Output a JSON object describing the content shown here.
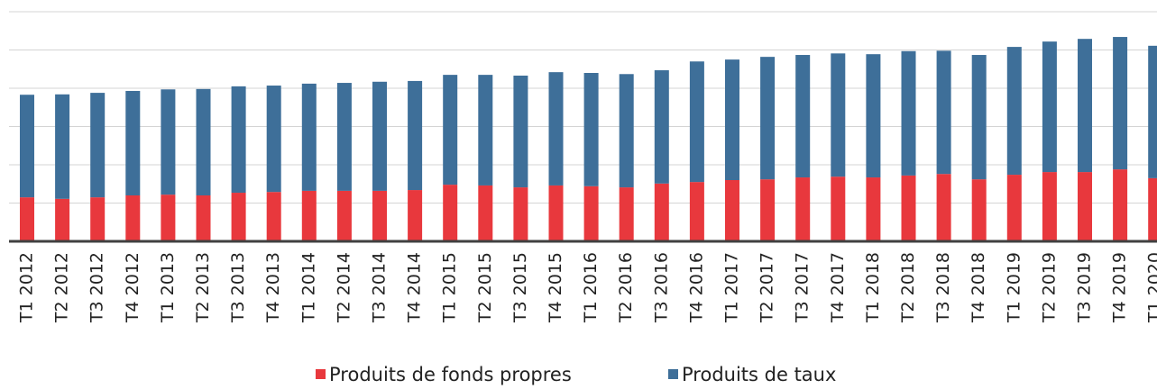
{
  "chart_data": {
    "type": "stacked_bar",
    "categories": [
      "T1 2012",
      "T2 2012",
      "T3 2012",
      "T4 2012",
      "T1 2013",
      "T2 2013",
      "T3 2013",
      "T4 2013",
      "T1 2014",
      "T2 2014",
      "T3 2014",
      "T4 2014",
      "T1 2015",
      "T2 2015",
      "T3 2015",
      "T4 2015",
      "T1 2016",
      "T2 2016",
      "T3 2016",
      "T4 2016",
      "T1 2017",
      "T2 2017",
      "T3 2017",
      "T4 2017",
      "T1 2018",
      "T2 2018",
      "T3 2018",
      "T4 2018",
      "T1 2019",
      "T2 2019",
      "T3 2019",
      "T4 2019",
      "T1 2020"
    ],
    "series": [
      {
        "name": "Produits de fonds propres",
        "color": "#e8383d",
        "values": [
          1.15,
          1.11,
          1.15,
          1.2,
          1.22,
          1.2,
          1.27,
          1.29,
          1.32,
          1.32,
          1.32,
          1.34,
          1.48,
          1.46,
          1.41,
          1.46,
          1.44,
          1.41,
          1.51,
          1.55,
          1.6,
          1.62,
          1.67,
          1.69,
          1.67,
          1.72,
          1.76,
          1.62,
          1.74,
          1.81,
          1.81,
          1.88,
          1.65
        ]
      },
      {
        "name": "Produits de taux",
        "color": "#3e6f99",
        "values": [
          2.68,
          2.73,
          2.73,
          2.73,
          2.75,
          2.78,
          2.78,
          2.78,
          2.8,
          2.82,
          2.85,
          2.85,
          2.87,
          2.89,
          2.92,
          2.96,
          2.96,
          2.96,
          2.96,
          3.15,
          3.15,
          3.2,
          3.2,
          3.22,
          3.22,
          3.25,
          3.22,
          3.25,
          3.34,
          3.41,
          3.48,
          3.46,
          3.46
        ]
      }
    ],
    "ylim": [
      0,
      6
    ],
    "yticks": [
      0,
      1,
      2,
      3,
      4,
      5,
      6
    ],
    "grid": true,
    "legend": "bottom"
  }
}
